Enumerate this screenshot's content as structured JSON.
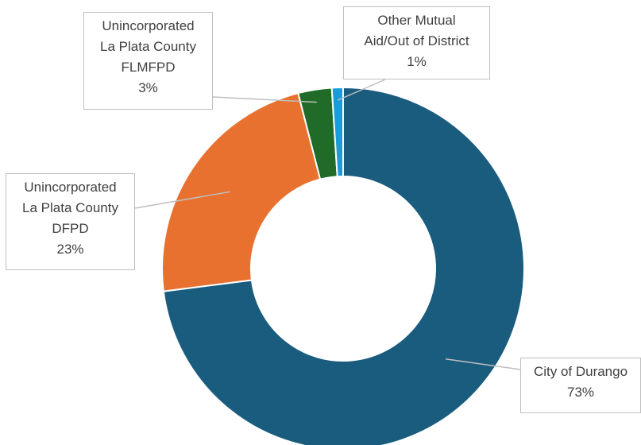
{
  "chart_data": {
    "type": "donut",
    "categories": [
      "City of Durango",
      "Unincorporated\nLa Plata County\nDFPD",
      "Unincorporated\nLa Plata County\nFLMFPD",
      "Other Mutual\nAid/Out of District"
    ],
    "values": [
      73,
      23,
      3,
      1
    ],
    "value_labels": [
      "73%",
      "23%",
      "3%",
      "1%"
    ],
    "colors": [
      "#1a5c7e",
      "#e8712f",
      "#1f6b27",
      "#1b9bd7"
    ]
  }
}
